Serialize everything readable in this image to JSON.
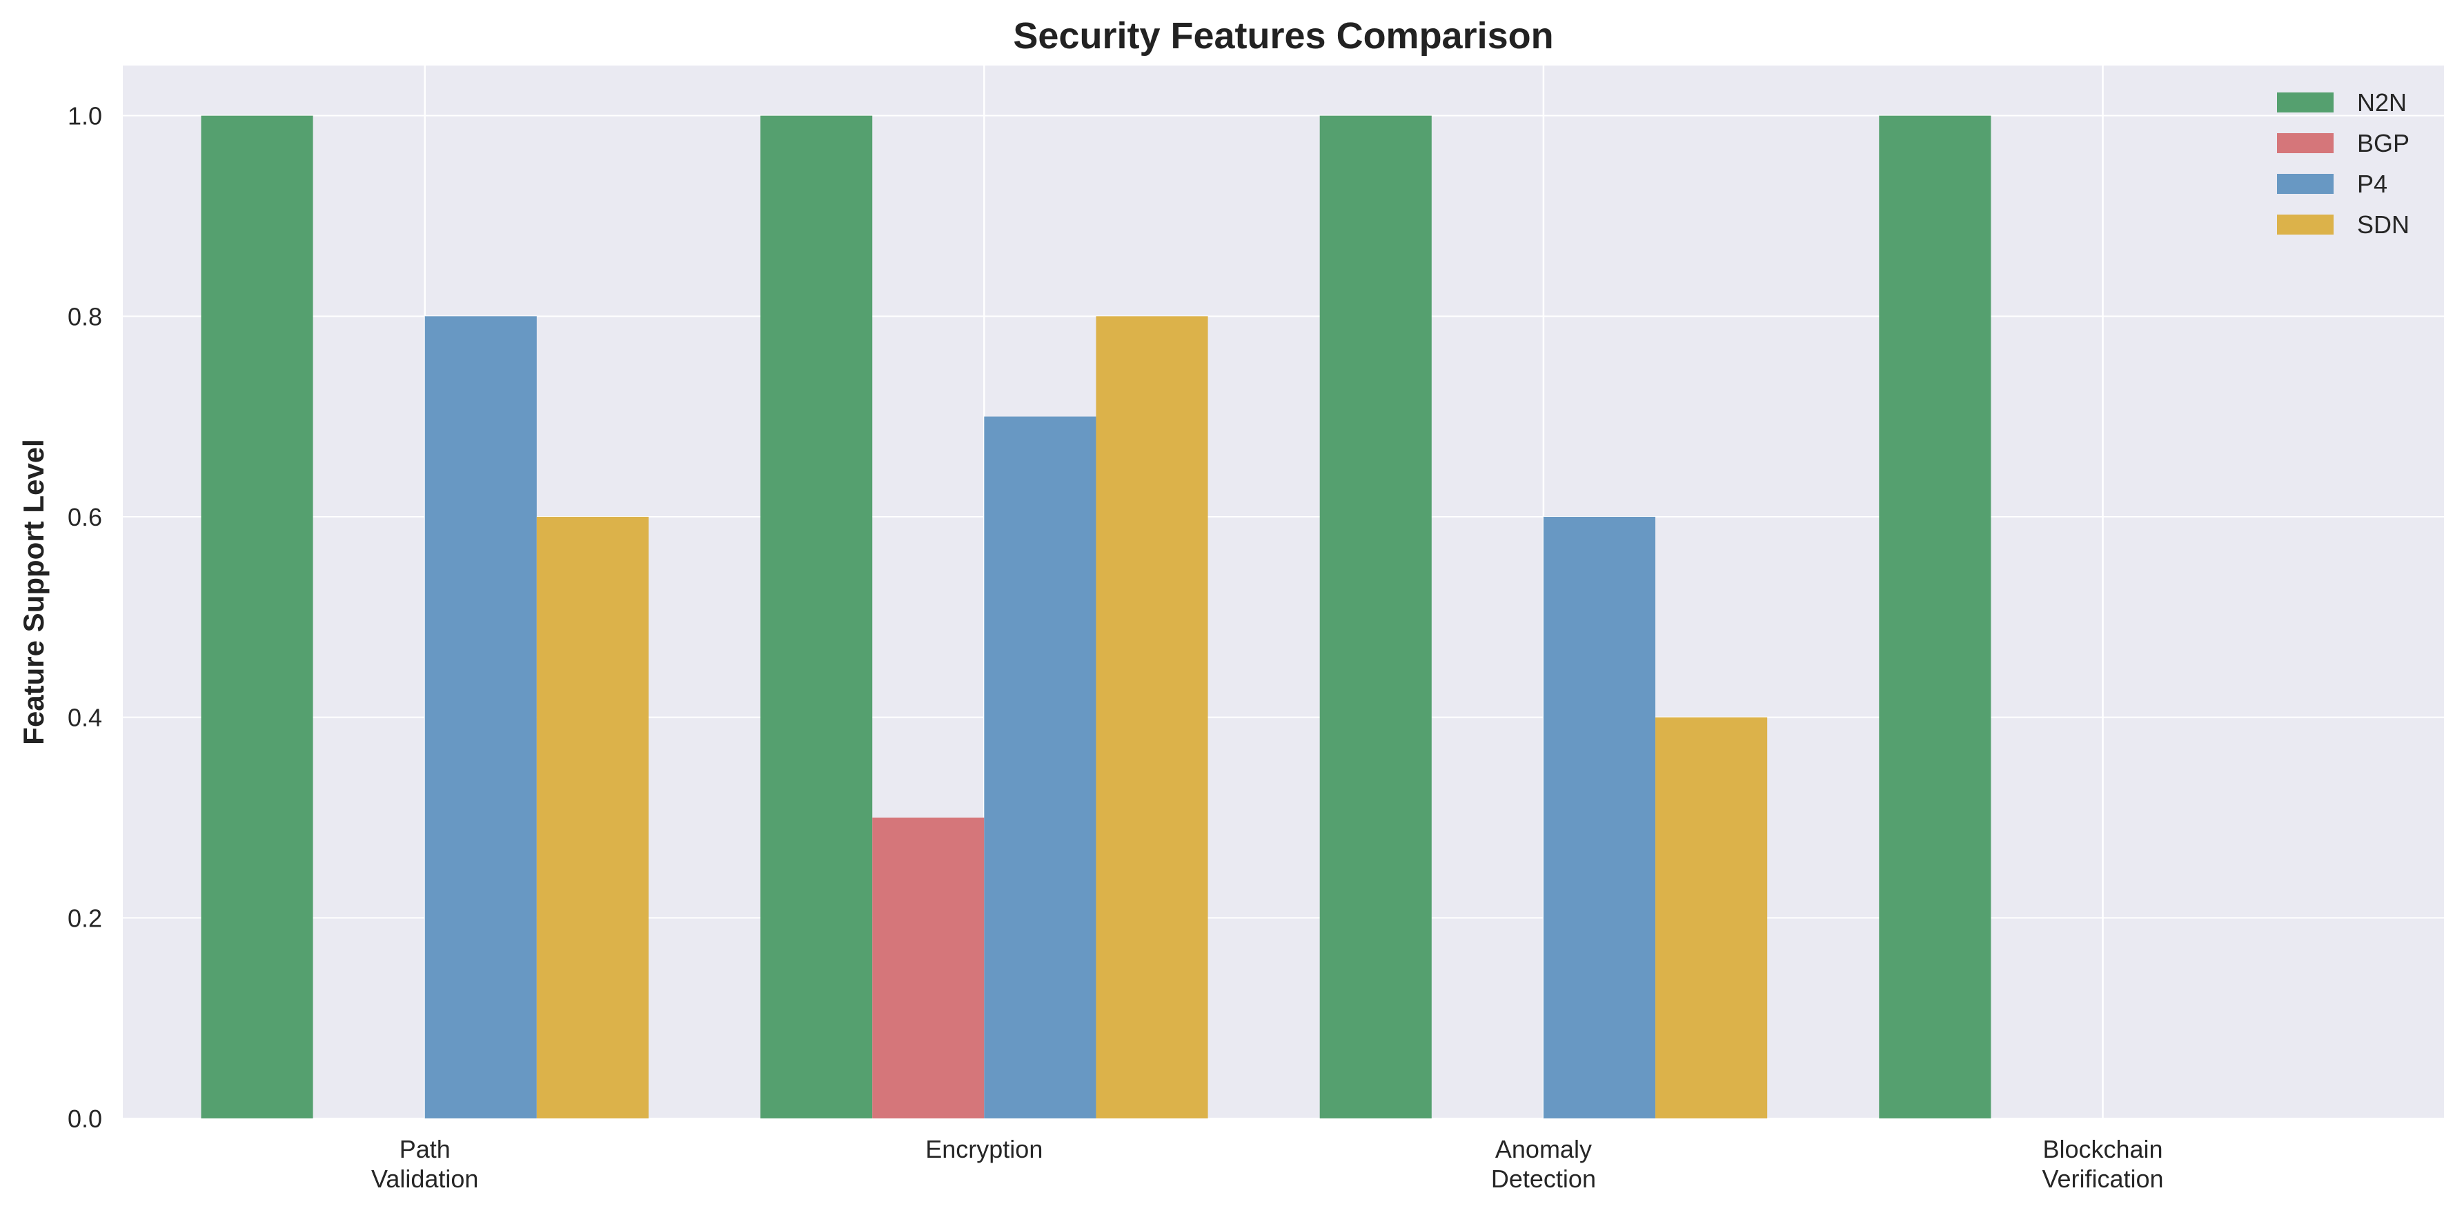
{
  "chart_data": {
    "type": "bar",
    "title": "Security Features Comparison",
    "xlabel": "",
    "ylabel": "Feature Support Level",
    "categories": [
      [
        "Path",
        "Validation"
      ],
      [
        "Encryption"
      ],
      [
        "Anomaly",
        "Detection"
      ],
      [
        "Blockchain",
        "Verification"
      ]
    ],
    "series": [
      {
        "name": "N2N",
        "color": "#55a06f",
        "values": [
          1.0,
          1.0,
          1.0,
          1.0
        ]
      },
      {
        "name": "BGP",
        "color": "#d5767a",
        "values": [
          0.0,
          0.3,
          0.0,
          0.0
        ]
      },
      {
        "name": "P4",
        "color": "#6898c3",
        "values": [
          0.8,
          0.7,
          0.6,
          0.0
        ]
      },
      {
        "name": "SDN",
        "color": "#dcb24a",
        "values": [
          0.6,
          0.8,
          0.4,
          0.0
        ]
      }
    ],
    "ylim": [
      0,
      1.05
    ],
    "yticks": [
      "0.0",
      "0.2",
      "0.4",
      "0.6",
      "0.8",
      "1.0"
    ],
    "grid": true,
    "legend_position": "top-right",
    "plot_background": "#eaeaf2",
    "grid_color": "#ffffff"
  }
}
